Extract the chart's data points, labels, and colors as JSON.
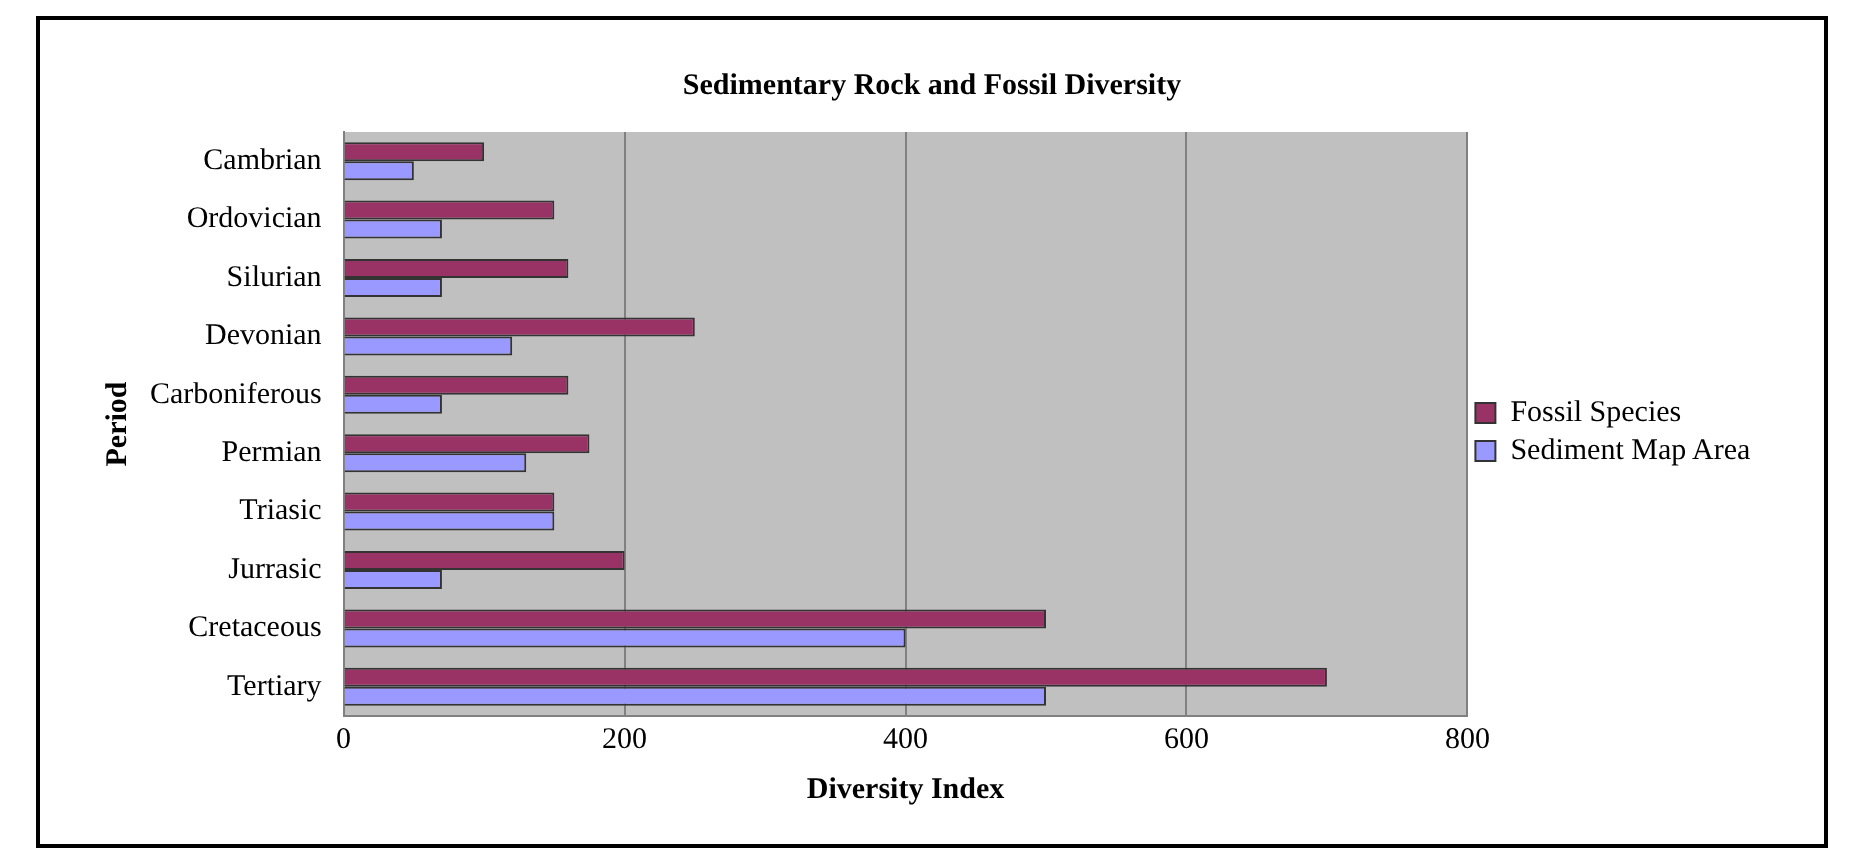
{
  "chart_data": {
    "type": "bar",
    "orientation": "horizontal",
    "title": "Sedimentary Rock and Fossil Diversity",
    "xlabel": "Diversity Index",
    "ylabel": "Period",
    "categories": [
      "Cambrian",
      "Ordovician",
      "Silurian",
      "Devonian",
      "Carboniferous",
      "Permian",
      "Triasic",
      "Jurrasic",
      "Cretaceous",
      "Tertiary"
    ],
    "series": [
      {
        "name": "Fossil Species",
        "color": "#993366",
        "values": [
          100,
          150,
          160,
          250,
          160,
          175,
          150,
          200,
          500,
          700
        ]
      },
      {
        "name": "Sediment Map Area",
        "color": "#9999ff",
        "values": [
          50,
          70,
          70,
          120,
          70,
          130,
          150,
          70,
          400,
          500
        ]
      }
    ],
    "xlim": [
      0,
      800
    ],
    "xticks": [
      0,
      200,
      400,
      600,
      800
    ],
    "grid": "x",
    "legend": "right"
  }
}
